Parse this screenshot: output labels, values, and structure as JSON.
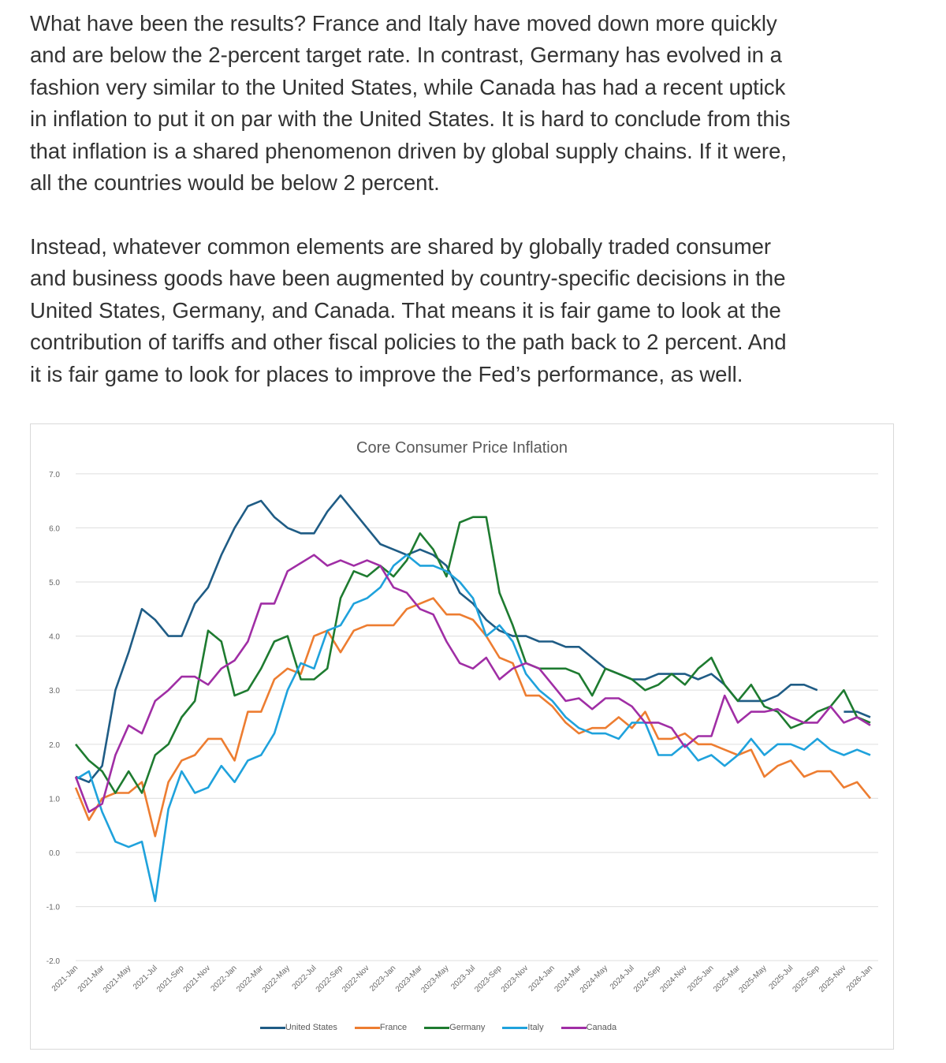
{
  "article": {
    "paragraphs": [
      {
        "lines": [
          "What have been the results? France and Italy have moved down more quickly",
          "and are below the 2-percent target rate. In contrast, Germany has evolved in a",
          "fashion very similar to the United States, while Canada has had a recent uptick",
          "in inflation to put it on par with the United States. It is hard to conclude from this",
          "that inflation is a shared phenomenon driven by global supply chains. If it were,",
          "all the countries would be below 2 percent."
        ]
      },
      {
        "lines": [
          "Instead, whatever common elements are shared by globally traded consumer",
          "and business goods have been augmented by country-specific decisions in the",
          "United States, Germany, and Canada. That means it is fair game to look at the",
          "contribution of tariffs and other fiscal policies to the path back to 2 percent. And",
          "it is fair game to look for places to improve the Fed’s performance, as well."
        ]
      }
    ]
  },
  "chart_data": {
    "type": "line",
    "title": "Core Consumer Price Inflation",
    "xlabel": "",
    "ylabel": "",
    "ylim": [
      -2.0,
      7.0
    ],
    "yticks": [
      "7.0",
      "6.0",
      "5.0",
      "4.0",
      "3.0",
      "2.0",
      "1.0",
      "0.0",
      "-1.0",
      "-2.0"
    ],
    "grid": true,
    "legend_position": "bottom",
    "x": [
      "2021-Jan",
      "2021-Feb",
      "2021-Mar",
      "2021-Apr",
      "2021-May",
      "2021-Jun",
      "2021-Jul",
      "2021-Aug",
      "2021-Sep",
      "2021-Oct",
      "2021-Nov",
      "2021-Dec",
      "2022-Jan",
      "2022-Feb",
      "2022-Mar",
      "2022-Apr",
      "2022-May",
      "2022-Jun",
      "2022-Jul",
      "2022-Aug",
      "2022-Sep",
      "2022-Oct",
      "2022-Nov",
      "2022-Dec",
      "2023-Jan",
      "2023-Feb",
      "2023-Mar",
      "2023-Apr",
      "2023-May",
      "2023-Jun",
      "2023-Jul",
      "2023-Aug",
      "2023-Sep",
      "2023-Oct",
      "2023-Nov",
      "2023-Dec",
      "2024-Jan",
      "2024-Feb",
      "2024-Mar",
      "2024-Apr",
      "2024-May",
      "2024-Jun",
      "2024-Jul",
      "2024-Aug",
      "2024-Sep",
      "2024-Oct",
      "2024-Nov",
      "2024-Dec",
      "2025-Jan",
      "2025-Feb",
      "2025-Mar",
      "2025-Apr",
      "2025-May",
      "2025-Jun",
      "2025-Jul",
      "2025-Aug",
      "2025-Sep",
      "2025-Oct",
      "2025-Nov",
      "2025-Dec",
      "2026-Jan"
    ],
    "xtick_labels": [
      "2021-Jan",
      "2021-Mar",
      "2021-May",
      "2021-Jul",
      "2021-Sep",
      "2021-Nov",
      "2022-Jan",
      "2022-Mar",
      "2022-May",
      "2022-Jul",
      "2022-Sep",
      "2022-Nov",
      "2023-Jan",
      "2023-Mar",
      "2023-May",
      "2023-Jul",
      "2023-Sep",
      "2023-Nov",
      "2024-Jan",
      "2024-Mar",
      "2024-May",
      "2024-Jul",
      "2024-Sep",
      "2024-Nov",
      "2025-Jan",
      "2025-Mar",
      "2025-May",
      "2025-Jul",
      "2025-Sep",
      "2025-Nov",
      "2026-Jan"
    ],
    "series": [
      {
        "name": "United States",
        "color": "#1f5c85",
        "values": [
          1.4,
          1.3,
          1.6,
          3.0,
          3.7,
          4.5,
          4.3,
          4.0,
          4.0,
          4.6,
          4.9,
          5.5,
          6.0,
          6.4,
          6.5,
          6.2,
          6.0,
          5.9,
          5.9,
          6.3,
          6.6,
          6.3,
          6.0,
          5.7,
          5.6,
          5.5,
          5.6,
          5.5,
          5.3,
          4.8,
          4.6,
          4.3,
          4.1,
          4.0,
          4.0,
          3.9,
          3.9,
          3.8,
          3.8,
          3.6,
          3.4,
          3.3,
          3.2,
          3.2,
          3.3,
          3.3,
          3.3,
          3.2,
          3.3,
          3.1,
          2.8,
          2.8,
          2.8,
          2.9,
          3.1,
          3.1,
          3.0,
          null,
          2.6,
          2.6,
          2.5
        ]
      },
      {
        "name": "France",
        "color": "#ed7d31",
        "values": [
          1.2,
          0.6,
          1.0,
          1.1,
          1.1,
          1.3,
          0.3,
          1.3,
          1.7,
          1.8,
          2.1,
          2.1,
          1.7,
          2.6,
          2.6,
          3.2,
          3.4,
          3.3,
          4.0,
          4.1,
          3.7,
          4.1,
          4.2,
          4.2,
          4.2,
          4.5,
          4.6,
          4.7,
          4.4,
          4.4,
          4.3,
          4.0,
          3.6,
          3.5,
          2.9,
          2.9,
          2.7,
          2.4,
          2.2,
          2.3,
          2.3,
          2.5,
          2.3,
          2.6,
          2.1,
          2.1,
          2.2,
          2.0,
          2.0,
          1.9,
          1.8,
          1.9,
          1.4,
          1.6,
          1.7,
          1.4,
          1.5,
          1.5,
          1.2,
          1.3,
          1.0
        ]
      },
      {
        "name": "Germany",
        "color": "#1e7b30",
        "values": [
          2.0,
          1.7,
          1.5,
          1.1,
          1.5,
          1.1,
          1.8,
          2.0,
          2.5,
          2.8,
          4.1,
          3.9,
          2.9,
          3.0,
          3.4,
          3.9,
          4.0,
          3.2,
          3.2,
          3.4,
          4.7,
          5.2,
          5.1,
          5.3,
          5.1,
          5.4,
          5.9,
          5.6,
          5.1,
          6.1,
          6.2,
          6.2,
          4.8,
          4.2,
          3.5,
          3.4,
          3.4,
          3.4,
          3.3,
          2.9,
          3.4,
          3.3,
          3.2,
          3.0,
          3.1,
          3.3,
          3.1,
          3.4,
          3.6,
          3.1,
          2.8,
          3.1,
          2.7,
          2.6,
          2.3,
          2.4,
          2.6,
          2.7,
          3.0,
          2.5,
          2.4
        ]
      },
      {
        "name": "Italy",
        "color": "#1fa2dc",
        "values": [
          1.35,
          1.5,
          0.75,
          0.2,
          0.1,
          0.2,
          -0.9,
          0.8,
          1.5,
          1.1,
          1.2,
          1.6,
          1.3,
          1.7,
          1.8,
          2.2,
          3.0,
          3.5,
          3.4,
          4.1,
          4.2,
          4.6,
          4.7,
          4.9,
          5.3,
          5.5,
          5.3,
          5.3,
          5.2,
          5.0,
          4.7,
          4.0,
          4.2,
          3.9,
          3.3,
          3.0,
          2.8,
          2.5,
          2.3,
          2.2,
          2.2,
          2.1,
          2.4,
          2.4,
          1.8,
          1.8,
          2.0,
          1.7,
          1.8,
          1.6,
          1.8,
          2.1,
          1.8,
          2.0,
          2.0,
          1.9,
          2.1,
          1.9,
          1.8,
          1.9,
          1.8
        ]
      },
      {
        "name": "Canada",
        "color": "#a02ea5",
        "values": [
          1.4,
          0.75,
          0.9,
          1.8,
          2.35,
          2.2,
          2.8,
          3.0,
          3.25,
          3.25,
          3.1,
          3.4,
          3.55,
          3.9,
          4.6,
          4.6,
          5.2,
          5.35,
          5.5,
          5.3,
          5.4,
          5.3,
          5.4,
          5.3,
          4.9,
          4.8,
          4.5,
          4.4,
          3.9,
          3.5,
          3.4,
          3.6,
          3.2,
          3.4,
          3.5,
          3.4,
          3.1,
          2.8,
          2.85,
          2.65,
          2.85,
          2.85,
          2.7,
          2.4,
          2.4,
          2.3,
          1.95,
          2.15,
          2.15,
          2.9,
          2.4,
          2.6,
          2.6,
          2.65,
          2.5,
          2.4,
          2.4,
          2.7,
          2.4,
          2.5,
          2.35
        ]
      }
    ]
  }
}
